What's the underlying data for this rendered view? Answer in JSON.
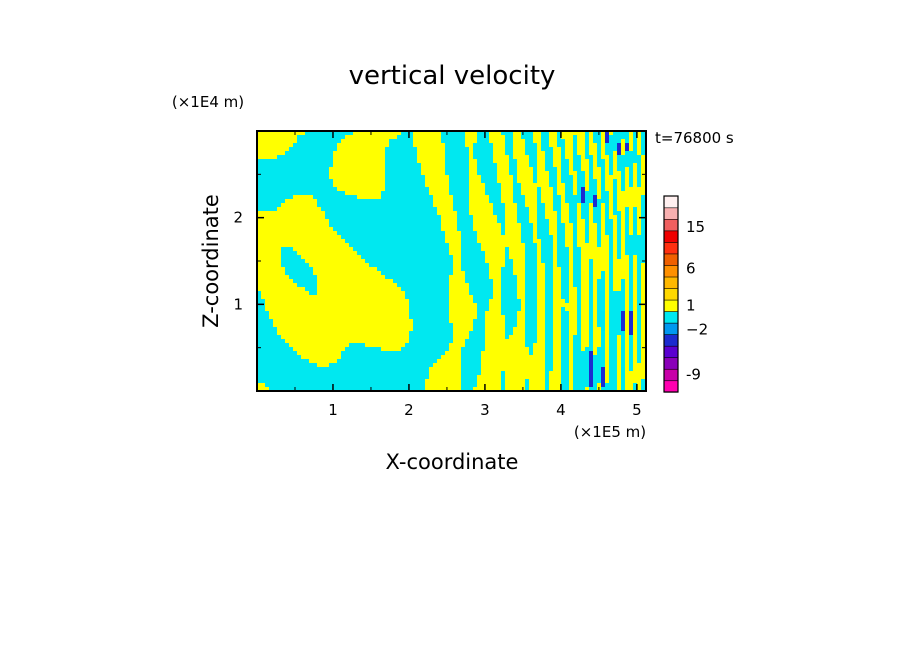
{
  "chart_data": {
    "type": "heatmap",
    "title": "vertical velocity",
    "xlabel": "X-coordinate",
    "ylabel": "Z-coordinate",
    "x_unit": "(×1E5 m)",
    "y_unit": "(×1E4 m)",
    "time_label": "t=76800 s",
    "xlim": [
      0,
      5.12
    ],
    "ylim": [
      0,
      3
    ],
    "x_ticks": [
      1,
      2,
      3,
      4,
      5
    ],
    "y_ticks": [
      1,
      2
    ],
    "x_tick_labels": [
      "1",
      "2",
      "3",
      "4",
      "5"
    ],
    "y_tick_labels": [
      "1",
      "2"
    ],
    "field_colors": {
      "negative": "#00e8f0",
      "positive": "#ffff00",
      "strong_negative": "#1c2bd0"
    },
    "colorbar": {
      "levels": [
        {
          "color": "#ff00b0"
        },
        {
          "color": "#c800a8"
        },
        {
          "color": "#8a00b8"
        },
        {
          "color": "#5a00d0"
        },
        {
          "color": "#1c2bd0"
        },
        {
          "color": "#0098f0"
        },
        {
          "color": "#00e8f0"
        },
        {
          "color": "#ffff00"
        },
        {
          "color": "#ffd800"
        },
        {
          "color": "#ffb800"
        },
        {
          "color": "#ff9000"
        },
        {
          "color": "#f06000"
        },
        {
          "color": "#ff3010"
        },
        {
          "color": "#f00000"
        },
        {
          "color": "#f06060"
        },
        {
          "color": "#f8b0b0"
        },
        {
          "color": "#fff0f0"
        }
      ],
      "labels": [
        {
          "text": "-9",
          "level": 1.5
        },
        {
          "text": "−2",
          "level": 5.4
        },
        {
          "text": "1",
          "level": 7.5
        },
        {
          "text": "6",
          "level": 10.7
        },
        {
          "text": "15",
          "level": 14.3
        }
      ]
    }
  }
}
